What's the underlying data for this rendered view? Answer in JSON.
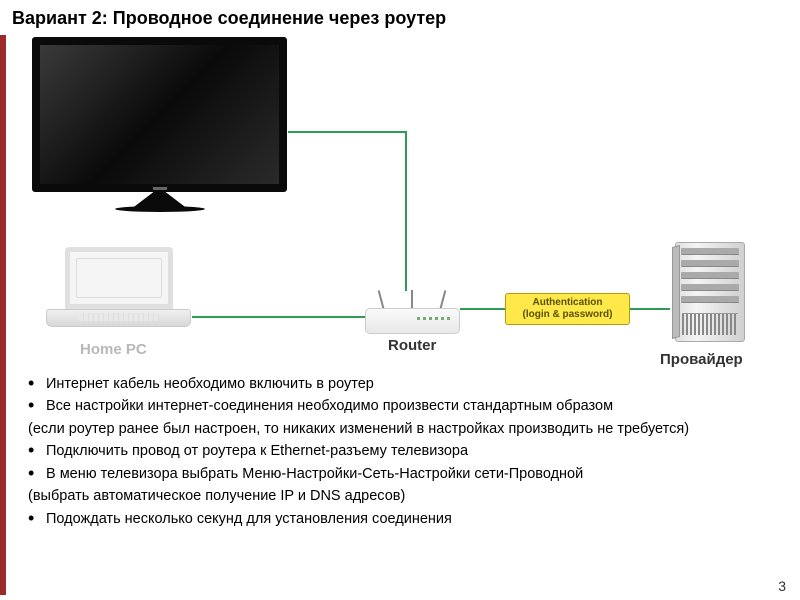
{
  "title": "Вариант 2: Проводное соединение через роутер",
  "diagram": {
    "labels": {
      "home_pc": "Home PC",
      "router": "Router",
      "provider": "Провайдер"
    },
    "auth_box": {
      "line1": "Authentication",
      "line2": "(login & password)"
    },
    "cable_color": "#2e9b57",
    "auth_bg": "#ffe94a",
    "auth_border": "#b89b00",
    "left_bar_color": "#9c2a2a"
  },
  "bullets": [
    "Интернет кабель необходимо включить в роутер",
    "Все настройки интернет-соединения необходимо произвести стандартным образом",
    "(если роутер ранее был настроен, то никаких изменений в настройках производить не требуется)",
    "Подключить провод от роутера к Ethernet-разъему телевизора",
    "В меню телевизора выбрать Меню-Настройки-Сеть-Настройки сети-Проводной",
    "(выбрать автоматическое получение IP и DNS адресов)",
    "Подождать несколько секунд для установления соединения"
  ],
  "bullet_continuation_indices": [
    2,
    5
  ],
  "page_number": "3"
}
